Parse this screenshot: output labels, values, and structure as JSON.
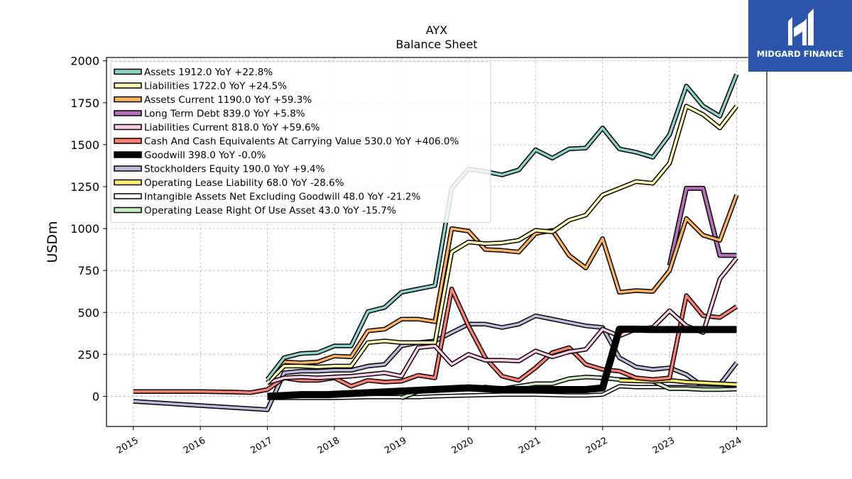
{
  "logo": {
    "text": "MIDGARD FINANCE",
    "background": "#2b56ac"
  },
  "chart_data": {
    "type": "line",
    "title": "AYX",
    "subtitle": "Balance  Sheet",
    "xlabel": "",
    "ylabel": "USDm",
    "xlim": [
      2014.6,
      2024.45
    ],
    "ylim": [
      -180,
      2020
    ],
    "yticks": [
      0,
      250,
      500,
      750,
      1000,
      1250,
      1500,
      1750,
      2000
    ],
    "xticks": [
      2015,
      2016,
      2017,
      2018,
      2019,
      2020,
      2021,
      2022,
      2023,
      2024
    ],
    "grid": true,
    "legend_position": "upper-left",
    "series": [
      {
        "name": "Assets",
        "legend": "Assets  1912.0 YoY +22.8%",
        "color": "#8dd3c7",
        "width": 3.5,
        "points": [
          [
            2017.0,
            100
          ],
          [
            2017.25,
            230
          ],
          [
            2017.5,
            255
          ],
          [
            2017.75,
            260
          ],
          [
            2018.0,
            300
          ],
          [
            2018.25,
            300
          ],
          [
            2018.5,
            505
          ],
          [
            2018.75,
            530
          ],
          [
            2019.0,
            620
          ],
          [
            2019.25,
            640
          ],
          [
            2019.5,
            660
          ],
          [
            2019.75,
            1240
          ],
          [
            2020.0,
            1355
          ],
          [
            2020.25,
            1340
          ],
          [
            2020.5,
            1320
          ],
          [
            2020.75,
            1350
          ],
          [
            2021.0,
            1470
          ],
          [
            2021.25,
            1420
          ],
          [
            2021.5,
            1475
          ],
          [
            2021.75,
            1480
          ],
          [
            2022.0,
            1600
          ],
          [
            2022.25,
            1475
          ],
          [
            2022.5,
            1455
          ],
          [
            2022.75,
            1425
          ],
          [
            2023.0,
            1560
          ],
          [
            2023.25,
            1850
          ],
          [
            2023.5,
            1730
          ],
          [
            2023.75,
            1670
          ],
          [
            2024.0,
            1920
          ]
        ]
      },
      {
        "name": "Liabilities",
        "legend": "Liabilities  1722.0 YoY +24.5%",
        "color": "#ffffb3",
        "width": 3.5,
        "points": [
          [
            2017.0,
            80
          ],
          [
            2017.25,
            180
          ],
          [
            2017.5,
            180
          ],
          [
            2017.75,
            175
          ],
          [
            2018.0,
            180
          ],
          [
            2018.25,
            180
          ],
          [
            2018.5,
            320
          ],
          [
            2018.75,
            330
          ],
          [
            2019.0,
            320
          ],
          [
            2019.25,
            320
          ],
          [
            2019.5,
            320
          ],
          [
            2019.75,
            860
          ],
          [
            2020.0,
            920
          ],
          [
            2020.25,
            910
          ],
          [
            2020.5,
            915
          ],
          [
            2020.75,
            930
          ],
          [
            2021.0,
            990
          ],
          [
            2021.25,
            980
          ],
          [
            2021.5,
            1050
          ],
          [
            2021.75,
            1080
          ],
          [
            2022.0,
            1200
          ],
          [
            2022.25,
            1240
          ],
          [
            2022.5,
            1280
          ],
          [
            2022.75,
            1270
          ],
          [
            2023.0,
            1390
          ],
          [
            2023.25,
            1730
          ],
          [
            2023.5,
            1680
          ],
          [
            2023.75,
            1600
          ],
          [
            2024.0,
            1730
          ]
        ]
      },
      {
        "name": "Assets Current",
        "legend": "Assets Current  1190.0 YoY +59.3%",
        "color": "#fdb462",
        "width": 3.5,
        "points": [
          [
            2017.0,
            100
          ],
          [
            2017.25,
            205
          ],
          [
            2017.5,
            200
          ],
          [
            2017.75,
            205
          ],
          [
            2018.0,
            240
          ],
          [
            2018.25,
            235
          ],
          [
            2018.5,
            390
          ],
          [
            2018.75,
            400
          ],
          [
            2019.0,
            460
          ],
          [
            2019.25,
            460
          ],
          [
            2019.5,
            445
          ],
          [
            2019.75,
            1000
          ],
          [
            2020.0,
            985
          ],
          [
            2020.25,
            875
          ],
          [
            2020.5,
            870
          ],
          [
            2020.75,
            860
          ],
          [
            2021.0,
            970
          ],
          [
            2021.25,
            990
          ],
          [
            2021.5,
            840
          ],
          [
            2021.75,
            765
          ],
          [
            2022.0,
            940
          ],
          [
            2022.25,
            620
          ],
          [
            2022.5,
            630
          ],
          [
            2022.75,
            625
          ],
          [
            2023.0,
            750
          ],
          [
            2023.25,
            1060
          ],
          [
            2023.5,
            960
          ],
          [
            2023.75,
            930
          ],
          [
            2024.0,
            1200
          ]
        ]
      },
      {
        "name": "Long Term Debt",
        "legend": "Long Term Debt  839.0 YoY +5.8%",
        "color": "#b46fb5",
        "width": 4,
        "points": [
          [
            2023.0,
            780
          ],
          [
            2023.25,
            1240
          ],
          [
            2023.5,
            1240
          ],
          [
            2023.75,
            840
          ],
          [
            2024.0,
            840
          ]
        ]
      },
      {
        "name": "Liabilities Current",
        "legend": "Liabilities Current  818.0 YoY +59.6%",
        "color": "#fccde5",
        "width": 3.5,
        "points": [
          [
            2017.0,
            80
          ],
          [
            2017.25,
            110
          ],
          [
            2017.5,
            115
          ],
          [
            2017.75,
            110
          ],
          [
            2018.0,
            115
          ],
          [
            2018.25,
            120
          ],
          [
            2018.5,
            130
          ],
          [
            2018.75,
            140
          ],
          [
            2019.0,
            120
          ],
          [
            2019.25,
            290
          ],
          [
            2019.5,
            300
          ],
          [
            2019.75,
            190
          ],
          [
            2020.0,
            250
          ],
          [
            2020.25,
            215
          ],
          [
            2020.5,
            215
          ],
          [
            2020.75,
            210
          ],
          [
            2021.0,
            270
          ],
          [
            2021.25,
            235
          ],
          [
            2021.5,
            265
          ],
          [
            2021.75,
            280
          ],
          [
            2022.0,
            400
          ],
          [
            2022.25,
            360
          ],
          [
            2022.5,
            400
          ],
          [
            2022.75,
            410
          ],
          [
            2023.0,
            510
          ],
          [
            2023.25,
            420
          ],
          [
            2023.5,
            380
          ],
          [
            2023.75,
            700
          ],
          [
            2024.0,
            825
          ]
        ]
      },
      {
        "name": "Cash And Cash Equivalents At Carrying Value",
        "legend": "Cash And Cash Equivalents At Carrying Value  530.0 YoY +406.0%",
        "color": "#fb8072",
        "width": 3.5,
        "points": [
          [
            2015.0,
            28
          ],
          [
            2016.0,
            28
          ],
          [
            2016.25,
            27
          ],
          [
            2016.5,
            25
          ],
          [
            2016.75,
            22
          ],
          [
            2017.0,
            40
          ],
          [
            2017.25,
            110
          ],
          [
            2017.5,
            95
          ],
          [
            2017.75,
            95
          ],
          [
            2018.0,
            110
          ],
          [
            2018.25,
            60
          ],
          [
            2018.5,
            95
          ],
          [
            2018.75,
            85
          ],
          [
            2019.0,
            90
          ],
          [
            2019.25,
            125
          ],
          [
            2019.5,
            110
          ],
          [
            2019.75,
            640
          ],
          [
            2020.0,
            420
          ],
          [
            2020.25,
            230
          ],
          [
            2020.5,
            120
          ],
          [
            2020.75,
            95
          ],
          [
            2021.0,
            170
          ],
          [
            2021.25,
            260
          ],
          [
            2021.5,
            290
          ],
          [
            2021.75,
            190
          ],
          [
            2022.0,
            160
          ],
          [
            2022.25,
            150
          ],
          [
            2022.5,
            110
          ],
          [
            2022.75,
            100
          ],
          [
            2023.0,
            110
          ],
          [
            2023.25,
            600
          ],
          [
            2023.5,
            480
          ],
          [
            2023.75,
            470
          ],
          [
            2024.0,
            535
          ]
        ]
      },
      {
        "name": "Goodwill",
        "legend": "Goodwill  398.0 YoY -0.0%",
        "color": "#000000",
        "width": 7,
        "points": [
          [
            2017.0,
            0
          ],
          [
            2017.5,
            10
          ],
          [
            2017.9,
            10
          ],
          [
            2020.0,
            50
          ],
          [
            2020.5,
            40
          ],
          [
            2021.0,
            40
          ],
          [
            2021.5,
            40
          ],
          [
            2021.75,
            40
          ],
          [
            2022.0,
            50
          ],
          [
            2022.25,
            400
          ],
          [
            2022.5,
            400
          ],
          [
            2022.75,
            398
          ],
          [
            2023.0,
            398
          ],
          [
            2023.25,
            398
          ],
          [
            2023.5,
            398
          ],
          [
            2023.75,
            398
          ],
          [
            2024.0,
            398
          ]
        ]
      },
      {
        "name": "Stockholders Equity",
        "legend": "Stockholders Equity  190.0 YoY +9.4%",
        "color": "#bebada",
        "width": 3.5,
        "points": [
          [
            2015.0,
            -30
          ],
          [
            2016.0,
            -55
          ],
          [
            2017.0,
            -80
          ],
          [
            2017.25,
            140
          ],
          [
            2017.5,
            150
          ],
          [
            2017.75,
            150
          ],
          [
            2018.0,
            155
          ],
          [
            2018.25,
            155
          ],
          [
            2018.5,
            180
          ],
          [
            2018.75,
            190
          ],
          [
            2019.0,
            300
          ],
          [
            2019.25,
            320
          ],
          [
            2019.5,
            330
          ],
          [
            2019.75,
            380
          ],
          [
            2020.0,
            430
          ],
          [
            2020.25,
            430
          ],
          [
            2020.5,
            410
          ],
          [
            2020.75,
            430
          ],
          [
            2021.0,
            480
          ],
          [
            2021.25,
            460
          ],
          [
            2021.5,
            440
          ],
          [
            2021.75,
            420
          ],
          [
            2022.0,
            410
          ],
          [
            2022.25,
            230
          ],
          [
            2022.5,
            175
          ],
          [
            2022.75,
            160
          ],
          [
            2023.0,
            170
          ],
          [
            2023.25,
            130
          ],
          [
            2023.5,
            60
          ],
          [
            2023.75,
            70
          ],
          [
            2024.0,
            200
          ]
        ]
      },
      {
        "name": "Operating Lease Liability",
        "legend": "Operating Lease Liability  68.0 YoY -28.6%",
        "color": "#ffed6f",
        "width": 3.5,
        "points": [
          [
            2022.25,
            95
          ],
          [
            2022.5,
            92
          ],
          [
            2022.75,
            90
          ],
          [
            2023.0,
            95
          ],
          [
            2023.25,
            85
          ],
          [
            2023.5,
            80
          ],
          [
            2023.75,
            75
          ],
          [
            2024.0,
            70
          ]
        ]
      },
      {
        "name": "Intangible Assets Net Excluding Goodwill",
        "legend": "Intangible Assets Net Excluding Goodwill  48.0 YoY -21.2%",
        "color": "#ffffff",
        "width": 3,
        "points": [
          [
            2017.0,
            -10
          ],
          [
            2017.5,
            -10
          ],
          [
            2018.0,
            -10
          ],
          [
            2018.5,
            -5
          ],
          [
            2019.0,
            -5
          ],
          [
            2019.25,
            -5
          ],
          [
            2019.5,
            0
          ],
          [
            2020.0,
            5
          ],
          [
            2020.5,
            10
          ],
          [
            2021.0,
            10
          ],
          [
            2021.5,
            5
          ],
          [
            2021.75,
            5
          ],
          [
            2022.0,
            10
          ],
          [
            2022.25,
            60
          ],
          [
            2022.5,
            55
          ],
          [
            2022.75,
            55
          ],
          [
            2023.0,
            55
          ],
          [
            2023.25,
            55
          ],
          [
            2023.5,
            52
          ],
          [
            2023.75,
            50
          ],
          [
            2024.0,
            48
          ]
        ]
      },
      {
        "name": "Operating Lease Right Of Use Asset",
        "legend": "Operating Lease Right Of Use Asset  43.0 YoY -15.7%",
        "color": "#ccebc5",
        "width": 3.5,
        "points": [
          [
            2019.0,
            -10
          ],
          [
            2019.25,
            30
          ],
          [
            2019.5,
            40
          ],
          [
            2019.75,
            45
          ],
          [
            2020.0,
            45
          ],
          [
            2020.25,
            55
          ],
          [
            2020.5,
            45
          ],
          [
            2020.75,
            60
          ],
          [
            2021.0,
            75
          ],
          [
            2021.25,
            75
          ],
          [
            2021.5,
            105
          ],
          [
            2021.75,
            115
          ],
          [
            2022.0,
            110
          ],
          [
            2022.25,
            100
          ],
          [
            2022.5,
            95
          ],
          [
            2022.75,
            90
          ],
          [
            2023.0,
            45
          ],
          [
            2023.25,
            45
          ],
          [
            2023.5,
            40
          ],
          [
            2023.75,
            40
          ],
          [
            2024.0,
            43
          ]
        ]
      }
    ]
  }
}
